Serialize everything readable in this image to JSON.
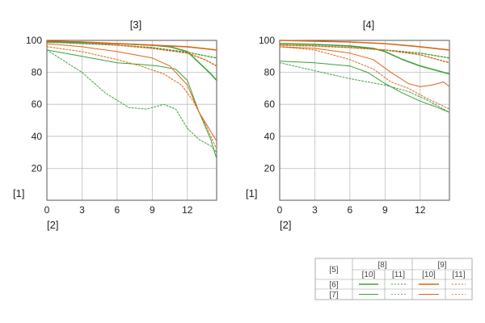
{
  "chart_data": [
    {
      "type": "line",
      "title": "[3]",
      "xlabel": "[2]",
      "ylabel": "[1]",
      "xlim": [
        0,
        14.5
      ],
      "ylim": [
        0,
        100
      ],
      "xticks": [
        "0",
        "3",
        "6",
        "9",
        "12"
      ],
      "yticks": [
        "20",
        "40",
        "60",
        "80",
        "100"
      ],
      "grid": true,
      "series": [
        {
          "group": "[6]",
          "freq": "[8]",
          "dir": "[10]",
          "color": "#3aa13a",
          "width": 1.6,
          "dash": "",
          "x": [
            0,
            3,
            6,
            9,
            10.5,
            12,
            13,
            14,
            14.5
          ],
          "y": [
            99,
            98.7,
            98,
            97,
            96,
            93,
            86,
            79,
            75
          ]
        },
        {
          "group": "[6]",
          "freq": "[8]",
          "dir": "[11]",
          "color": "#3aa13a",
          "width": 1.4,
          "dash": "2,2",
          "x": [
            0,
            3,
            6,
            9,
            12,
            14.5
          ],
          "y": [
            99,
            98,
            97,
            95.5,
            92.5,
            89
          ]
        },
        {
          "group": "[6]",
          "freq": "[9]",
          "dir": "[10]",
          "color": "#d9661a",
          "width": 1.6,
          "dash": "",
          "x": [
            0,
            3,
            6,
            9,
            12,
            14.5
          ],
          "y": [
            99.5,
            99,
            98,
            97,
            96,
            94
          ]
        },
        {
          "group": "[6]",
          "freq": "[9]",
          "dir": "[11]",
          "color": "#d9661a",
          "width": 1.4,
          "dash": "2,2",
          "x": [
            0,
            3,
            6,
            9,
            12,
            13.5,
            14.5
          ],
          "y": [
            99.5,
            99,
            97,
            95,
            92,
            88,
            84
          ]
        },
        {
          "group": "[7]",
          "freq": "[8]",
          "dir": "[10]",
          "color": "#3aa13a",
          "width": 1.0,
          "dash": "",
          "x": [
            0,
            3,
            6,
            8,
            9.5,
            11,
            12,
            13,
            14,
            14.5
          ],
          "y": [
            94,
            90,
            86,
            85,
            84,
            82,
            75,
            55,
            38,
            26
          ]
        },
        {
          "group": "[7]",
          "freq": "[8]",
          "dir": "[11]",
          "color": "#3aa13a",
          "width": 1.0,
          "dash": "2,2",
          "x": [
            0,
            1.5,
            3,
            5,
            7,
            8.5,
            10,
            11,
            12,
            13,
            14,
            14.5
          ],
          "y": [
            94,
            87,
            80,
            67,
            58,
            57,
            60,
            57,
            45,
            38,
            34,
            30
          ]
        },
        {
          "group": "[7]",
          "freq": "[9]",
          "dir": "[10]",
          "color": "#d9661a",
          "width": 1.0,
          "dash": "",
          "x": [
            0,
            3,
            6,
            9,
            10.5,
            12,
            13,
            14.5
          ],
          "y": [
            98,
            96,
            93,
            89,
            84,
            72,
            55,
            37
          ]
        },
        {
          "group": "[7]",
          "freq": "[9]",
          "dir": "[11]",
          "color": "#d9661a",
          "width": 1.0,
          "dash": "2,2",
          "x": [
            0,
            3,
            6,
            8,
            10,
            11.5,
            12.5,
            13.5,
            14.5
          ],
          "y": [
            96,
            93,
            88,
            84,
            79,
            72,
            62,
            48,
            32
          ]
        }
      ]
    },
    {
      "type": "line",
      "title": "[4]",
      "xlabel": "[2]",
      "ylabel": "[1]",
      "xlim": [
        0,
        14.5
      ],
      "ylim": [
        0,
        100
      ],
      "xticks": [
        "0",
        "3",
        "6",
        "9",
        "12"
      ],
      "yticks": [
        "20",
        "40",
        "60",
        "80",
        "100"
      ],
      "grid": true,
      "series": [
        {
          "group": "[6]",
          "freq": "[8]",
          "dir": "[10]",
          "color": "#3aa13a",
          "width": 1.6,
          "dash": "",
          "x": [
            0,
            3,
            6,
            8,
            9,
            10.5,
            12,
            13.5,
            14.5
          ],
          "y": [
            98,
            97.5,
            96.5,
            95,
            93,
            88,
            84,
            81,
            79
          ]
        },
        {
          "group": "[6]",
          "freq": "[8]",
          "dir": "[11]",
          "color": "#3aa13a",
          "width": 1.4,
          "dash": "2,2",
          "x": [
            0,
            3,
            6,
            9,
            12,
            14.5
          ],
          "y": [
            97,
            96.5,
            95.5,
            94,
            92,
            89
          ]
        },
        {
          "group": "[6]",
          "freq": "[9]",
          "dir": "[10]",
          "color": "#d9661a",
          "width": 1.6,
          "dash": "",
          "x": [
            0,
            3,
            6,
            9,
            12,
            14.5
          ],
          "y": [
            100,
            99.5,
            99,
            98,
            96,
            94
          ]
        },
        {
          "group": "[6]",
          "freq": "[9]",
          "dir": "[11]",
          "color": "#d9661a",
          "width": 1.4,
          "dash": "2,2",
          "x": [
            0,
            3,
            6,
            9,
            12,
            14.5
          ],
          "y": [
            97,
            96.5,
            95.5,
            94,
            91,
            86
          ]
        },
        {
          "group": "[7]",
          "freq": "[8]",
          "dir": "[10]",
          "color": "#3aa13a",
          "width": 1.0,
          "dash": "",
          "x": [
            0,
            3,
            6,
            7.5,
            9,
            10.5,
            12,
            13.5,
            14.5
          ],
          "y": [
            87,
            86,
            84,
            80,
            73,
            67,
            62,
            58,
            55
          ]
        },
        {
          "group": "[7]",
          "freq": "[8]",
          "dir": "[11]",
          "color": "#3aa13a",
          "width": 1.0,
          "dash": "2,2",
          "x": [
            0,
            3,
            6,
            9,
            11,
            12.5,
            14.5
          ],
          "y": [
            86,
            81,
            76,
            72,
            68,
            63,
            55
          ]
        },
        {
          "group": "[7]",
          "freq": "[9]",
          "dir": "[10]",
          "color": "#d9661a",
          "width": 1.0,
          "dash": "",
          "x": [
            0,
            3,
            6,
            8,
            9.5,
            11,
            12,
            13,
            14,
            14.5
          ],
          "y": [
            96,
            95,
            92,
            88,
            80,
            73,
            71,
            72,
            74,
            71
          ]
        },
        {
          "group": "[7]",
          "freq": "[9]",
          "dir": "[11]",
          "color": "#d9661a",
          "width": 1.0,
          "dash": "2,2",
          "x": [
            0,
            3,
            6,
            8,
            9.5,
            11,
            12.5,
            14.5
          ],
          "y": [
            96,
            94,
            88,
            82,
            74,
            70,
            64,
            57
          ]
        }
      ]
    }
  ],
  "legend": {
    "corner": "[5]",
    "freq_headers": [
      "[8]",
      "[9]"
    ],
    "dir_headers": [
      "[10]",
      "[11]",
      "[10]",
      "[11]"
    ],
    "rows": [
      {
        "label": "[6]",
        "samples": [
          {
            "color": "#3aa13a",
            "width": 1.6,
            "dash": ""
          },
          {
            "color": "#3aa13a",
            "width": 1.0,
            "dash": "2,2"
          },
          {
            "color": "#d9661a",
            "width": 1.6,
            "dash": ""
          },
          {
            "color": "#d9661a",
            "width": 1.0,
            "dash": "2,2"
          }
        ]
      },
      {
        "label": "[7]",
        "samples": [
          {
            "color": "#3aa13a",
            "width": 1.0,
            "dash": ""
          },
          {
            "color": "#3aa13a",
            "width": 0.8,
            "dash": "2,2"
          },
          {
            "color": "#d9661a",
            "width": 1.0,
            "dash": ""
          },
          {
            "color": "#d9661a",
            "width": 0.8,
            "dash": "2,2"
          }
        ]
      }
    ]
  }
}
